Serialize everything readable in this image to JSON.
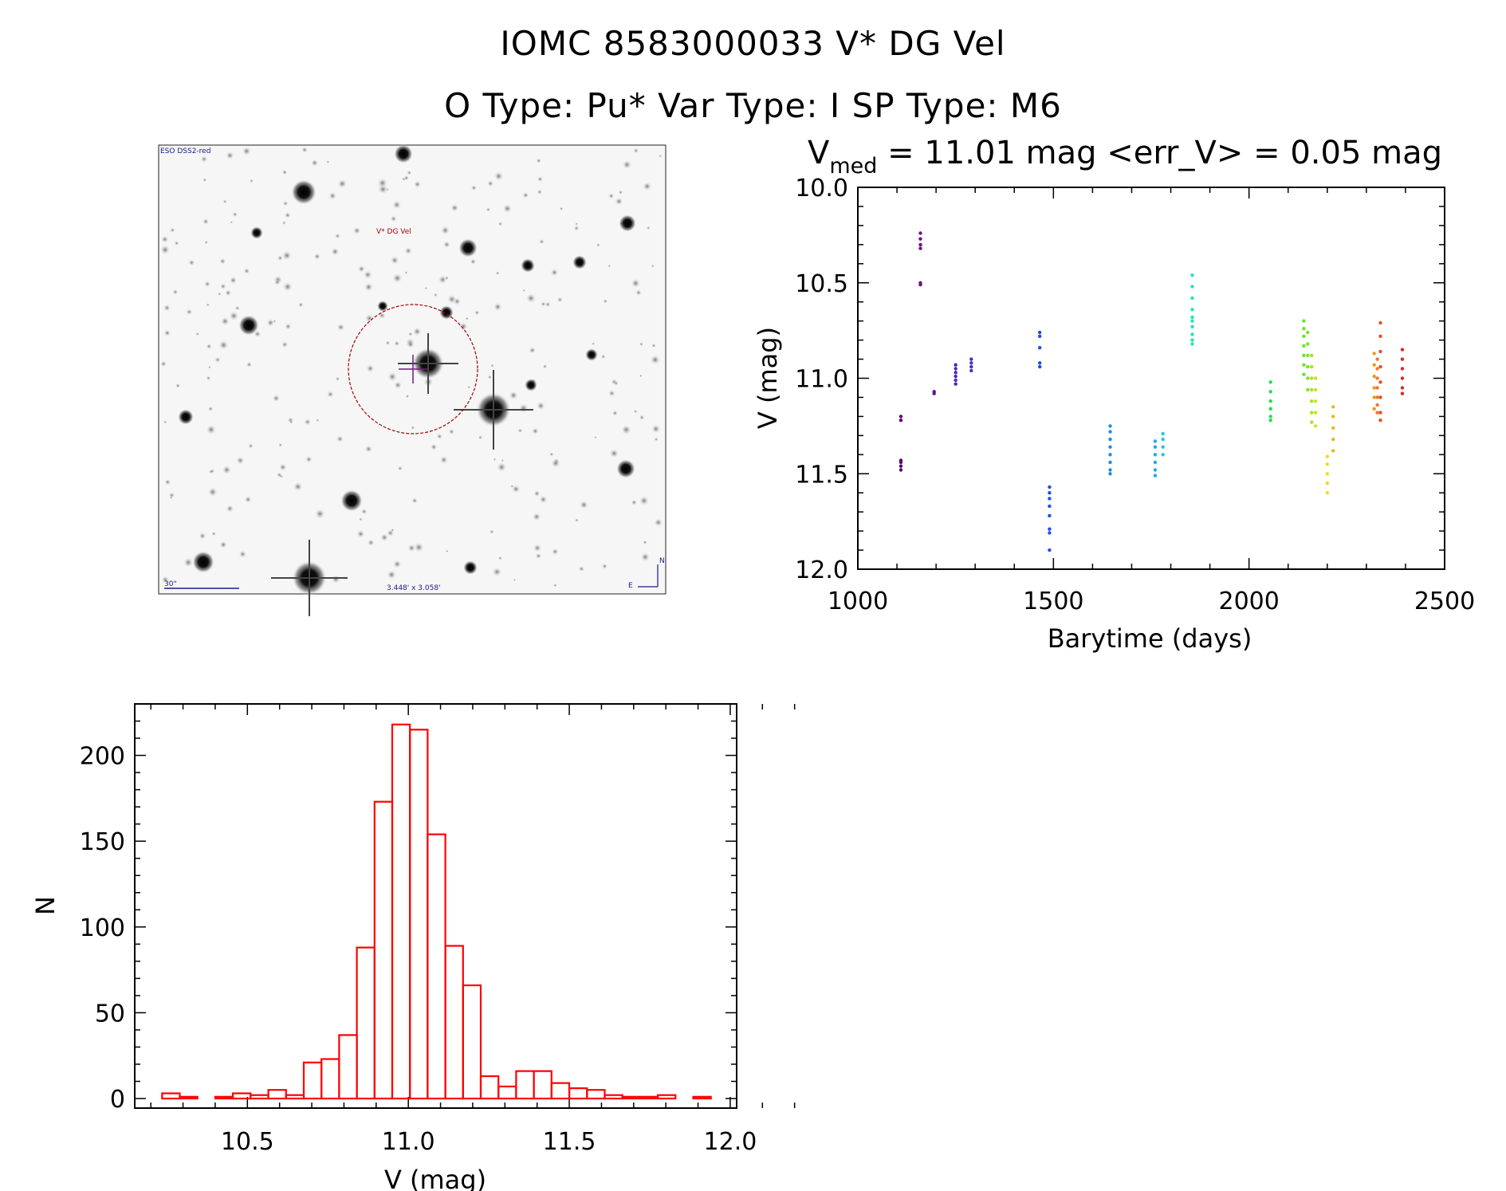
{
  "header": {
    "line1": "IOMC 8583000033    V* DG Vel",
    "line2": "O Type: Pu*  Var Type: I  SP Type: M6"
  },
  "finder": {
    "survey_label": "ESO DSS2-red",
    "target_label": "V* DG Vel",
    "scale_label": "30\"",
    "fov_label": "3.448' x 3.058'",
    "north_label": "N",
    "east_label": "E"
  },
  "chart_data": [
    {
      "type": "scatter",
      "title_prefix": "V",
      "title_sub": "med",
      "title_rest": " = 11.01 mag <err_V> = 0.05 mag",
      "xlabel": "Barytime (days)",
      "ylabel": "V (mag)",
      "xlim": [
        1000,
        2500
      ],
      "ylim": [
        12.0,
        10.0
      ],
      "xticks": [
        "1000",
        "1500",
        "2000",
        "2500"
      ],
      "yticks": [
        "10.0",
        "10.5",
        "11.0",
        "11.5",
        "12.0"
      ],
      "groups": [
        {
          "x": 1110,
          "ys": [
            11.2,
            11.22,
            11.43,
            11.44,
            11.46,
            11.48
          ],
          "color": "#5a0a6a"
        },
        {
          "x": 1160,
          "ys": [
            10.24,
            10.27,
            10.3,
            10.32,
            10.5,
            10.51
          ],
          "color": "#70107e"
        },
        {
          "x": 1195,
          "ys": [
            11.07,
            11.08
          ],
          "color": "#5a1496"
        },
        {
          "x": 1250,
          "ys": [
            10.93,
            10.95,
            10.97,
            10.99,
            11.01,
            11.03
          ],
          "color": "#5028b4"
        },
        {
          "x": 1290,
          "ys": [
            10.9,
            10.92,
            10.94,
            10.96
          ],
          "color": "#4632c8"
        },
        {
          "x": 1465,
          "ys": [
            10.76,
            10.78,
            10.84,
            10.92,
            10.94
          ],
          "color": "#2846dc"
        },
        {
          "x": 1490,
          "ys": [
            11.57,
            11.6,
            11.63,
            11.67,
            11.72,
            11.79,
            11.81,
            11.9
          ],
          "color": "#1e50e6"
        },
        {
          "x": 1645,
          "ys": [
            11.25,
            11.28,
            11.32,
            11.36,
            11.4,
            11.44,
            11.48,
            11.5
          ],
          "color": "#1e8ce6"
        },
        {
          "x": 1760,
          "ys": [
            11.33,
            11.36,
            11.4,
            11.44,
            11.48,
            11.51
          ],
          "color": "#1eaaf0"
        },
        {
          "x": 1780,
          "ys": [
            11.29,
            11.32,
            11.36,
            11.4
          ],
          "color": "#1ec8e6"
        },
        {
          "x": 1855,
          "ys": [
            10.46,
            10.52,
            10.58,
            10.64,
            10.68,
            10.7,
            10.73,
            10.77,
            10.8,
            10.82
          ],
          "color": "#1ee6b4"
        },
        {
          "x": 2055,
          "ys": [
            11.02,
            11.07,
            11.12,
            11.16,
            11.2,
            11.22
          ],
          "color": "#28dc50"
        },
        {
          "x": 2140,
          "ys": [
            10.7,
            10.74,
            10.78,
            10.83,
            10.88,
            10.93,
            10.98
          ],
          "color": "#64e628"
        },
        {
          "x": 2150,
          "ys": [
            10.76,
            10.82,
            10.88,
            10.94,
            11.0,
            11.06
          ],
          "color": "#7ee61e"
        },
        {
          "x": 2160,
          "ys": [
            10.88,
            10.94,
            11.0,
            11.06,
            11.12,
            11.18,
            11.23
          ],
          "color": "#a0e61e"
        },
        {
          "x": 2170,
          "ys": [
            11.0,
            11.06,
            11.12,
            11.18,
            11.25
          ],
          "color": "#c8e61e"
        },
        {
          "x": 2200,
          "ys": [
            11.41,
            11.45,
            11.5,
            11.55,
            11.6
          ],
          "color": "#f0dc1e"
        },
        {
          "x": 2215,
          "ys": [
            11.15,
            11.2,
            11.26,
            11.32,
            11.38
          ],
          "color": "#f0b41e"
        },
        {
          "x": 2320,
          "ys": [
            10.87,
            10.93,
            10.99,
            11.05,
            11.1,
            11.16
          ],
          "color": "#f0961e"
        },
        {
          "x": 2328,
          "ys": [
            10.9,
            10.95,
            11.0,
            11.05,
            11.1,
            11.14,
            11.18
          ],
          "color": "#f07828"
        },
        {
          "x": 2336,
          "ys": [
            10.71,
            10.78,
            10.86,
            10.94,
            11.02,
            11.1,
            11.18,
            11.22
          ],
          "color": "#e65028"
        },
        {
          "x": 2392,
          "ys": [
            10.85,
            10.9,
            10.95,
            11.0,
            11.05,
            11.08
          ],
          "color": "#dc2828"
        }
      ]
    },
    {
      "type": "histogram",
      "xlabel": "V (mag)",
      "ylabel": "N",
      "xlim": [
        10.2,
        12.0
      ],
      "ylim": [
        0,
        225
      ],
      "xticks": [
        "10.5",
        "11.0",
        "11.5",
        "12.0"
      ],
      "yticks": [
        "0",
        "50",
        "100",
        "150",
        "200"
      ],
      "bin_width": 0.055,
      "bin_start": 10.235,
      "counts": [
        3,
        1,
        0,
        1,
        3,
        2,
        5,
        2,
        21,
        23,
        37,
        88,
        173,
        218,
        215,
        154,
        89,
        66,
        13,
        7,
        16,
        16,
        9,
        6,
        5,
        2,
        1,
        1,
        2,
        0,
        1
      ],
      "color": "#ff0000"
    }
  ]
}
